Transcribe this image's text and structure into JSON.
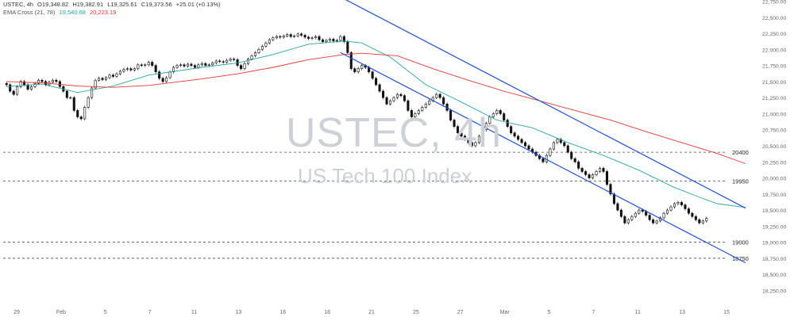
{
  "header": {
    "symbol": "USTEC, 4h",
    "open": "O19,348.82",
    "high": "H19,382.91",
    "low": "L19,325.61",
    "close": "C19,373.56",
    "change": "+25.01 (+0.13%)",
    "ema_label": "EMA Cross (21, 78)",
    "ema_fast_value": "19,540.68",
    "ema_slow_value": "20,223.19"
  },
  "watermark": {
    "symbol": "USTEC, 4h",
    "name": "US Tech 100 Index"
  },
  "colors": {
    "candle": "#111111",
    "ema_fast": "#26a69a",
    "ema_slow": "#e53935",
    "channel": "#1f4fd6",
    "level_line": "#444444",
    "axis_text": "#666666",
    "watermark": "#cdd0d6"
  },
  "chart_data": {
    "type": "candlestick",
    "title": "USTEC, 4h",
    "subtitle": "US Tech 100 Index",
    "x_tick_labels": [
      "29",
      "Feb",
      "5",
      "7",
      "11",
      "13",
      "16",
      "18",
      "21",
      "25",
      "27",
      "Mar",
      "5",
      "7",
      "11",
      "13",
      "15"
    ],
    "y_tick_labels": [
      "22,750.00",
      "22,500.00",
      "22,250.00",
      "22,000.00",
      "21,750.00",
      "21,500.00",
      "21,250.00",
      "21,000.00",
      "20,750.00",
      "20,500.00",
      "20,250.00",
      "20,000.00",
      "19,750.00",
      "19,500.00",
      "19,250.00",
      "19,000.00",
      "18,750.00",
      "18,500.00",
      "18,250.00"
    ],
    "y_ticks": [
      22750,
      22500,
      22250,
      22000,
      21750,
      21500,
      21250,
      21000,
      20750,
      20500,
      20250,
      20000,
      19750,
      19500,
      19250,
      19000,
      18750,
      18500,
      18250
    ],
    "ylim": [
      18100,
      22850
    ],
    "x_count": 17,
    "closes": [
      21450,
      21350,
      21300,
      21420,
      21500,
      21450,
      21380,
      21420,
      21470,
      21520,
      21500,
      21450,
      21490,
      21520,
      21500,
      21420,
      21350,
      21250,
      21250,
      21050,
      20950,
      20920,
      21100,
      21250,
      21400,
      21520,
      21550,
      21530,
      21560,
      21600,
      21580,
      21620,
      21660,
      21690,
      21700,
      21680,
      21700,
      21760,
      21750,
      21760,
      21800,
      21750,
      21650,
      21550,
      21500,
      21560,
      21650,
      21720,
      21750,
      21760,
      21740,
      21770,
      21750,
      21720,
      21760,
      21780,
      21750,
      21760,
      21790,
      21820,
      21810,
      21800,
      21830,
      21850,
      21840,
      21750,
      21700,
      21780,
      21850,
      21900,
      21950,
      22000,
      22050,
      22100,
      22150,
      22180,
      22200,
      22190,
      22210,
      22230,
      22200,
      22210,
      22240,
      22220,
      22190,
      22170,
      22180,
      22200,
      22150,
      22120,
      22140,
      22160,
      22130,
      22140,
      22200,
      22120,
      21950,
      21700,
      21650,
      21700,
      21750,
      21720,
      21650,
      21550,
      21450,
      21350,
      21250,
      21150,
      21200,
      21250,
      21300,
      21280,
      21200,
      21050,
      20950,
      21000,
      21050,
      21100,
      21150,
      21200,
      21250,
      21300,
      21250,
      21150,
      21050,
      20900,
      20800,
      20700,
      20650,
      20600,
      20550,
      20500,
      20550,
      20650,
      20750,
      20850,
      20950,
      21000,
      21050,
      21000,
      20900,
      20800,
      20700,
      20650,
      20600,
      20550,
      20500,
      20450,
      20400,
      20350,
      20300,
      20250,
      20350,
      20450,
      20550,
      20600,
      20550,
      20500,
      20400,
      20300,
      20250,
      20150,
      20100,
      20050,
      20000,
      20050,
      20100,
      20150,
      20100,
      19900,
      19750,
      19600,
      19500,
      19400,
      19300,
      19350,
      19400,
      19450,
      19500,
      19480,
      19420,
      19350,
      19300,
      19330,
      19380,
      19450,
      19500,
      19550,
      19600,
      19620,
      19580,
      19520,
      19450,
      19400,
      19350,
      19300,
      19330,
      19373.56
    ],
    "series": [
      {
        "name": "EMA Cross (21, 78)",
        "value_label": "19,540.68",
        "points": [
          [
            0,
            21420
          ],
          [
            10,
            21460
          ],
          [
            20,
            21330
          ],
          [
            30,
            21430
          ],
          [
            40,
            21600
          ],
          [
            55,
            21720
          ],
          [
            65,
            21790
          ],
          [
            75,
            21920
          ],
          [
            85,
            22080
          ],
          [
            95,
            22130
          ],
          [
            100,
            22100
          ],
          [
            108,
            21880
          ],
          [
            118,
            21450
          ],
          [
            128,
            21180
          ],
          [
            138,
            20900
          ],
          [
            148,
            20780
          ],
          [
            158,
            20550
          ],
          [
            168,
            20350
          ],
          [
            178,
            20120
          ],
          [
            188,
            19850
          ],
          [
            196,
            19680
          ],
          [
            200,
            19600
          ],
          [
            208,
            19540.68
          ]
        ]
      },
      {
        "name": "EMA Cross (21, 78)",
        "value_label": "20,223.19",
        "points": [
          [
            0,
            21500
          ],
          [
            10,
            21480
          ],
          [
            20,
            21430
          ],
          [
            30,
            21410
          ],
          [
            40,
            21440
          ],
          [
            55,
            21540
          ],
          [
            65,
            21620
          ],
          [
            75,
            21720
          ],
          [
            85,
            21840
          ],
          [
            95,
            21920
          ],
          [
            100,
            21940
          ],
          [
            110,
            21900
          ],
          [
            120,
            21700
          ],
          [
            130,
            21520
          ],
          [
            140,
            21350
          ],
          [
            150,
            21200
          ],
          [
            160,
            21050
          ],
          [
            170,
            20900
          ],
          [
            180,
            20720
          ],
          [
            190,
            20550
          ],
          [
            200,
            20380
          ],
          [
            208,
            20223.19
          ]
        ]
      }
    ],
    "channel_lines": [
      {
        "from": [
          94,
          22815
        ],
        "to": [
          208,
          19530
        ]
      },
      {
        "from": [
          94,
          21950
        ],
        "to": [
          208,
          18680
        ]
      }
    ],
    "levels": [
      {
        "value": 20400,
        "label": "20400"
      },
      {
        "value": 19950,
        "label": "19950"
      },
      {
        "value": 19000,
        "label": "19000"
      },
      {
        "value": 18750,
        "label": "18750"
      }
    ],
    "grid": false,
    "legend": "top-left"
  }
}
